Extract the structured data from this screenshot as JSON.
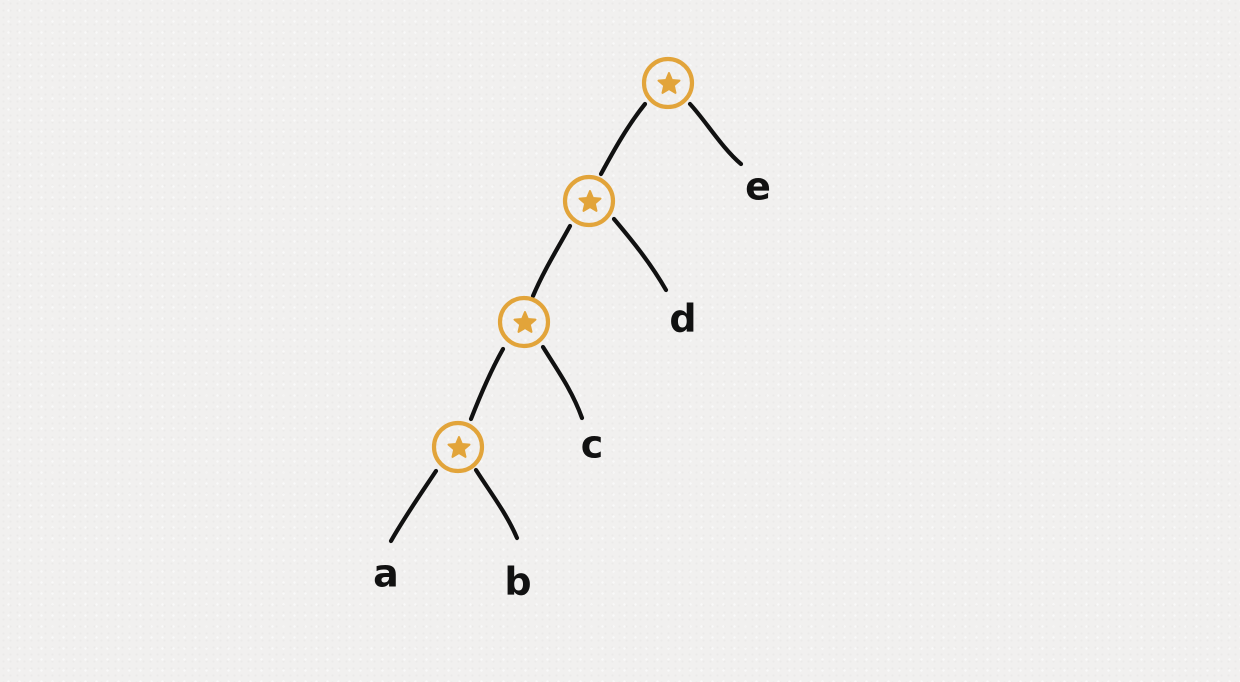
{
  "colors": {
    "edge": "#111111",
    "operator": "#e2a43a",
    "leaf_text": "#111111"
  },
  "operator_icon": "star-icon",
  "nodes": [
    {
      "id": "n1",
      "type": "operator",
      "symbol": "*"
    },
    {
      "id": "n2",
      "type": "operator",
      "symbol": "*"
    },
    {
      "id": "n3",
      "type": "operator",
      "symbol": "*"
    },
    {
      "id": "n4",
      "type": "operator",
      "symbol": "*"
    },
    {
      "id": "leaf-a",
      "type": "leaf",
      "label": "a"
    },
    {
      "id": "leaf-b",
      "type": "leaf",
      "label": "b"
    },
    {
      "id": "leaf-c",
      "type": "leaf",
      "label": "c"
    },
    {
      "id": "leaf-d",
      "type": "leaf",
      "label": "d"
    },
    {
      "id": "leaf-e",
      "type": "leaf",
      "label": "e"
    }
  ],
  "edges": [
    {
      "from": "n1",
      "to": "n2"
    },
    {
      "from": "n1",
      "to": "leaf-e"
    },
    {
      "from": "n2",
      "to": "n3"
    },
    {
      "from": "n2",
      "to": "leaf-d"
    },
    {
      "from": "n3",
      "to": "n4"
    },
    {
      "from": "n3",
      "to": "leaf-c"
    },
    {
      "from": "n4",
      "to": "leaf-a"
    },
    {
      "from": "n4",
      "to": "leaf-b"
    }
  ]
}
